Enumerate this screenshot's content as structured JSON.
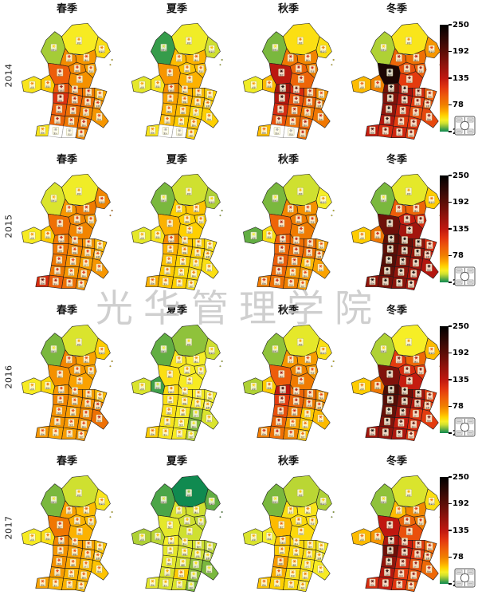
{
  "watermark": "光华管理学院",
  "seasons": [
    "春季",
    "夏季",
    "秋季",
    "冬季"
  ],
  "years": [
    "2014",
    "2015",
    "2016",
    "2017"
  ],
  "colorbar": {
    "ticks": [
      250,
      192,
      135,
      78,
      20
    ],
    "min": 20,
    "max": 250,
    "stops": [
      [
        250,
        "#000000"
      ],
      [
        220,
        "#2e0805"
      ],
      [
        192,
        "#5c0e07"
      ],
      [
        165,
        "#8c130c"
      ],
      [
        135,
        "#c01810"
      ],
      [
        115,
        "#e23510"
      ],
      [
        95,
        "#ee5f0a"
      ],
      [
        78,
        "#f07f00"
      ],
      [
        65,
        "#fba500"
      ],
      [
        55,
        "#ffd000"
      ],
      [
        45,
        "#f6ee26"
      ],
      [
        38,
        "#cfe030"
      ],
      [
        30,
        "#7ab83e"
      ],
      [
        25,
        "#3fa04a"
      ],
      [
        20,
        "#108a50"
      ]
    ],
    "no_data_color": "#ffffff"
  },
  "chart_data": {
    "type": "heatmap",
    "subtype": "choropleth-grid",
    "rows": "years",
    "columns": "seasons",
    "value_range": [
      20,
      250
    ],
    "legend_position": "right-of-each-row",
    "regions": [
      "张家口",
      "承德",
      "秦皇岛",
      "北京",
      "唐山",
      "廊坊",
      "天津",
      "保定",
      "沧州",
      "太原",
      "阳泉",
      "石家庄",
      "衡水",
      "德州",
      "滨州",
      "邢台",
      "聊城",
      "济南",
      "淄博",
      "邯郸",
      "濮阳",
      "济宁",
      "徐州",
      "安阳",
      "菏泽",
      "宿州",
      "郑州",
      "新乡",
      "开封",
      "淮北"
    ],
    "series": [
      {
        "year": "2014",
        "season": "春季",
        "values": [
          34,
          46,
          50,
          74,
          70,
          76,
          68,
          96,
          72,
          48,
          56,
          100,
          86,
          80,
          64,
          118,
          92,
          86,
          74,
          96,
          86,
          76,
          70,
          92,
          82,
          86,
          48,
          null,
          null,
          76
        ]
      },
      {
        "year": "2014",
        "season": "夏季",
        "values": [
          24,
          44,
          38,
          60,
          62,
          58,
          60,
          70,
          62,
          42,
          48,
          74,
          62,
          60,
          54,
          66,
          62,
          60,
          56,
          62,
          60,
          52,
          55,
          60,
          56,
          58,
          48,
          null,
          null,
          55
        ]
      },
      {
        "year": "2014",
        "season": "秋季",
        "values": [
          30,
          50,
          50,
          82,
          76,
          92,
          78,
          138,
          92,
          44,
          60,
          152,
          122,
          92,
          70,
          142,
          102,
          92,
          80,
          122,
          92,
          80,
          82,
          102,
          86,
          92,
          60,
          null,
          null,
          86
        ]
      },
      {
        "year": "2014",
        "season": "冬季",
        "values": [
          35,
          48,
          70,
          92,
          86,
          102,
          96,
          232,
          112,
          60,
          76,
          182,
          152,
          122,
          96,
          172,
          142,
          112,
          100,
          162,
          122,
          102,
          106,
          142,
          112,
          116,
          132,
          122,
          126,
          110
        ]
      },
      {
        "year": "2015",
        "season": "春季",
        "values": [
          40,
          44,
          76,
          70,
          80,
          76,
          70,
          86,
          76,
          46,
          56,
          82,
          76,
          72,
          60,
          82,
          76,
          70,
          66,
          82,
          72,
          66,
          70,
          80,
          70,
          76,
          122,
          96,
          86,
          72
        ]
      },
      {
        "year": "2015",
        "season": "夏季",
        "values": [
          30,
          38,
          35,
          55,
          58,
          55,
          55,
          62,
          55,
          42,
          48,
          76,
          58,
          55,
          50,
          62,
          58,
          55,
          52,
          58,
          54,
          50,
          50,
          56,
          52,
          52,
          62,
          58,
          55,
          50
        ]
      },
      {
        "year": "2015",
        "season": "秋季",
        "values": [
          30,
          38,
          45,
          76,
          72,
          80,
          76,
          92,
          80,
          28,
          50,
          96,
          86,
          86,
          66,
          92,
          88,
          86,
          76,
          96,
          82,
          60,
          66,
          90,
          70,
          70,
          80,
          86,
          78,
          68
        ]
      },
      {
        "year": "2015",
        "season": "冬季",
        "values": [
          30,
          42,
          56,
          96,
          92,
          132,
          122,
          182,
          152,
          56,
          82,
          192,
          186,
          162,
          122,
          192,
          176,
          162,
          132,
          196,
          172,
          152,
          142,
          186,
          162,
          152,
          162,
          176,
          166,
          146
        ]
      },
      {
        "year": "2016",
        "season": "春季",
        "values": [
          30,
          40,
          56,
          76,
          66,
          70,
          66,
          72,
          66,
          46,
          52,
          70,
          72,
          68,
          60,
          76,
          70,
          72,
          80,
          72,
          68,
          76,
          86,
          70,
          70,
          72,
          70,
          66,
          68,
          70
        ]
      },
      {
        "year": "2016",
        "season": "夏季",
        "values": [
          28,
          32,
          38,
          48,
          45,
          46,
          45,
          50,
          46,
          40,
          25,
          52,
          48,
          46,
          44,
          50,
          48,
          46,
          44,
          50,
          46,
          32,
          40,
          48,
          44,
          30,
          56,
          48,
          46,
          36
        ]
      },
      {
        "year": "2016",
        "season": "秋季",
        "values": [
          32,
          42,
          50,
          70,
          68,
          76,
          70,
          96,
          80,
          35,
          56,
          136,
          92,
          86,
          70,
          112,
          92,
          80,
          72,
          102,
          80,
          56,
          60,
          92,
          66,
          56,
          80,
          86,
          76,
          58
        ]
      },
      {
        "year": "2016",
        "season": "冬季",
        "values": [
          35,
          45,
          60,
          112,
          90,
          122,
          112,
          172,
          132,
          56,
          82,
          202,
          182,
          152,
          112,
          196,
          172,
          142,
          112,
          186,
          152,
          116,
          112,
          172,
          132,
          122,
          152,
          162,
          146,
          116
        ]
      },
      {
        "year": "2017",
        "season": "春季",
        "values": [
          30,
          38,
          48,
          66,
          60,
          62,
          60,
          82,
          62,
          46,
          50,
          76,
          68,
          66,
          58,
          70,
          66,
          64,
          60,
          72,
          64,
          60,
          58,
          68,
          62,
          62,
          66,
          62,
          62,
          60
        ]
      },
      {
        "year": "2017",
        "season": "夏季",
        "values": [
          26,
          20,
          28,
          40,
          38,
          38,
          36,
          42,
          38,
          35,
          36,
          45,
          40,
          38,
          36,
          42,
          40,
          38,
          34,
          42,
          38,
          32,
          30,
          40,
          56,
          32,
          42,
          40,
          40,
          30
        ]
      },
      {
        "year": "2017",
        "season": "秋季",
        "values": [
          30,
          36,
          35,
          50,
          48,
          52,
          50,
          60,
          52,
          40,
          45,
          58,
          52,
          50,
          46,
          56,
          52,
          50,
          46,
          68,
          52,
          48,
          46,
          62,
          50,
          50,
          58,
          55,
          52,
          48
        ]
      },
      {
        "year": "2017",
        "season": "冬季",
        "values": [
          32,
          40,
          50,
          60,
          75,
          92,
          80,
          135,
          102,
          60,
          70,
          146,
          132,
          112,
          90,
          182,
          142,
          112,
          90,
          162,
          122,
          102,
          90,
          142,
          112,
          102,
          122,
          132,
          116,
          96
        ]
      }
    ]
  }
}
